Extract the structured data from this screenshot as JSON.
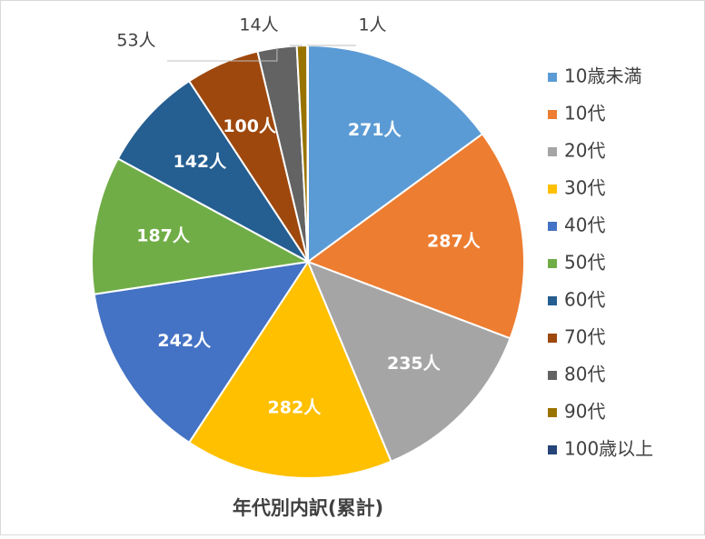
{
  "chart_data": {
    "type": "pie",
    "title": "年代別内訳(累計)",
    "categories": [
      "10歳未満",
      "10代",
      "20代",
      "30代",
      "40代",
      "50代",
      "60代",
      "70代",
      "80代",
      "90代",
      "100歳以上"
    ],
    "values": [
      271,
      287,
      235,
      282,
      242,
      187,
      142,
      100,
      53,
      14,
      1
    ],
    "value_labels": [
      "271人",
      "287人",
      "235人",
      "282人",
      "242人",
      "187人",
      "142人",
      "100人",
      "53人",
      "14人",
      "1人"
    ],
    "colors": [
      "#5b9bd5",
      "#ed7d31",
      "#a5a5a5",
      "#ffc000",
      "#4472c4",
      "#70ad47",
      "#255e91",
      "#9e480e",
      "#636363",
      "#997300",
      "#264478"
    ],
    "legend": "right"
  }
}
